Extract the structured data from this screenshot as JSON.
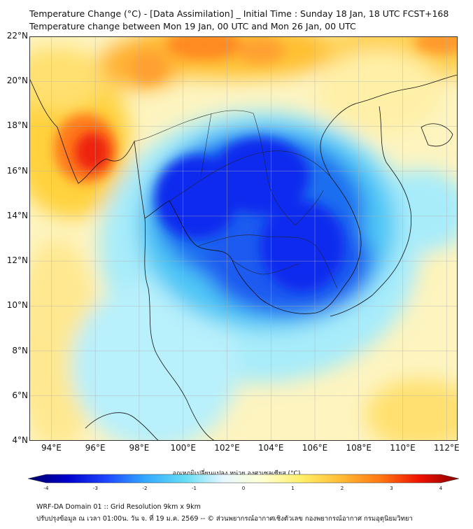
{
  "header": {
    "title_line1": "Temperature Change (°C) - [Data Assimilation] _ Initial Time : Sunday 18 Jan, 18 UTC FCST+168",
    "title_line2": "Temperature change between Mon 19 Jan, 00 UTC and Mon 26 Jan, 00 UTC"
  },
  "map": {
    "region": "Mainland Southeast Asia",
    "lat_range": [
      4,
      22
    ],
    "lon_range": [
      93,
      112.5
    ],
    "lat_labels": [
      "22°N",
      "20°N",
      "18°N",
      "16°N",
      "14°N",
      "12°N",
      "10°N",
      "8°N",
      "6°N",
      "4°N"
    ],
    "lon_labels": [
      "94°E",
      "96°E",
      "98°E",
      "100°E",
      "102°E",
      "104°E",
      "106°E",
      "108°E",
      "110°E",
      "112°E"
    ],
    "grid": true,
    "field": "temperature change (°C)"
  },
  "colorbar": {
    "title": "อุณหภูมิเปลี่ยนแปลง หน่วย องศาเซลเซียส (°C)",
    "range": [
      -4,
      4
    ],
    "tick_labels": [
      "-4",
      "-3",
      "-2",
      "-1",
      "0",
      "1",
      "2",
      "3",
      "4"
    ],
    "colors": [
      "#000066",
      "#0000cc",
      "#1e46ff",
      "#33aaff",
      "#66ddf5",
      "#e8f8ff",
      "#ffffd0",
      "#ffee66",
      "#ffbb33",
      "#ff7711",
      "#ee1100",
      "#880000"
    ]
  },
  "footer": {
    "line1": "WRF-DA Domain 01 :: Grid Resolution 9km x 9km",
    "line2": "ปรับปรุงข้อมูล ณ เวลา 01:00น. วัน จ. ที่ 19 ม.ค. 2569 -- © ส่วนพยากรณ์อากาศเชิงตัวเลข กองพยากรณ์อากาศ กรมอุตุนิยมวิทยา"
  }
}
